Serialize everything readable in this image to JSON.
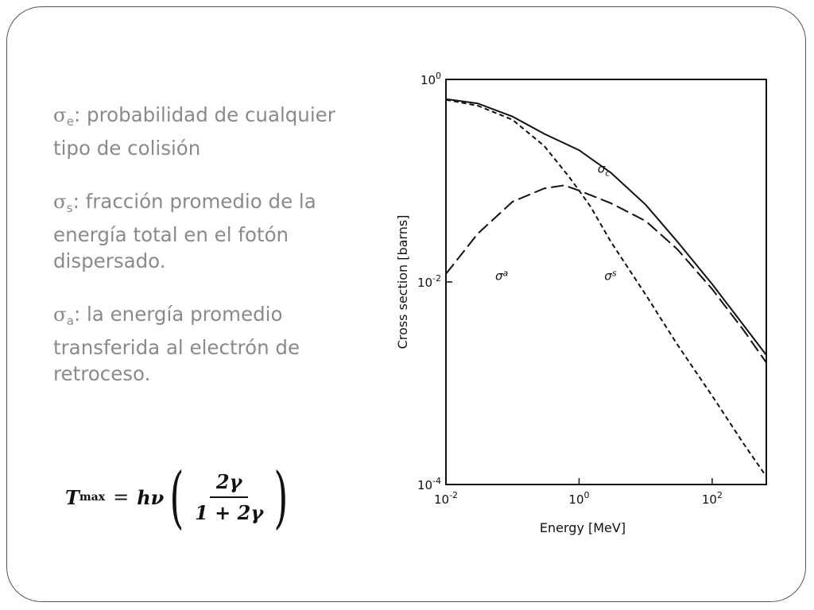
{
  "definitions": [
    {
      "symbol": "σ",
      "sub": "e",
      "text": ": probabilidad de cualquier tipo de colisión"
    },
    {
      "symbol": "σ",
      "sub": "s",
      "text": ": fracción promedio de la energía total en el fotón dispersado."
    },
    {
      "symbol": "σ",
      "sub": "a",
      "text": ": la energía promedio transferida al electrón de retroceso."
    }
  ],
  "formula": {
    "lhs": "T",
    "lhs_sub": "max",
    "eq": "=",
    "coef": "hν",
    "numerator": "2γ",
    "denominator": "1 + 2γ"
  },
  "chart_data": {
    "type": "line",
    "xlabel": "Energy [MeV]",
    "ylabel": "Cross section [barns]",
    "xscale": "log",
    "yscale": "log",
    "xlim": [
      0.01,
      650
    ],
    "ylim": [
      0.0001,
      1
    ],
    "x_ticks": [
      {
        "value": 0.01,
        "base": "10",
        "exp": "-2"
      },
      {
        "value": 1,
        "base": "10",
        "exp": "0"
      },
      {
        "value": 100,
        "base": "10",
        "exp": "2"
      }
    ],
    "y_ticks": [
      {
        "value": 0.0001,
        "base": "10",
        "exp": "-4"
      },
      {
        "value": 0.01,
        "base": "10",
        "exp": "-2"
      },
      {
        "value": 1,
        "base": "10",
        "exp": "0"
      }
    ],
    "series": [
      {
        "label": "σc",
        "style": "solid",
        "x": [
          0.01,
          0.03,
          0.1,
          0.3,
          1,
          3,
          10,
          30,
          100,
          300,
          650
        ],
        "y": [
          0.64,
          0.58,
          0.43,
          0.29,
          0.2,
          0.12,
          0.058,
          0.025,
          0.0095,
          0.0037,
          0.0019
        ]
      },
      {
        "label": "σs",
        "style": "dashed",
        "x": [
          0.01,
          0.03,
          0.1,
          0.3,
          0.7,
          1,
          1.5,
          3,
          10,
          30,
          100,
          300,
          650
        ],
        "y": [
          0.63,
          0.55,
          0.4,
          0.22,
          0.11,
          0.08,
          0.055,
          0.025,
          0.0075,
          0.0024,
          0.00075,
          0.00025,
          0.00012
        ]
      },
      {
        "label": "σa",
        "style": "long-dash",
        "x": [
          0.01,
          0.03,
          0.1,
          0.3,
          0.6,
          1,
          3,
          10,
          30,
          100,
          300,
          650
        ],
        "y": [
          0.012,
          0.03,
          0.062,
          0.084,
          0.09,
          0.08,
          0.06,
          0.04,
          0.021,
          0.0085,
          0.0033,
          0.0016
        ]
      }
    ]
  }
}
